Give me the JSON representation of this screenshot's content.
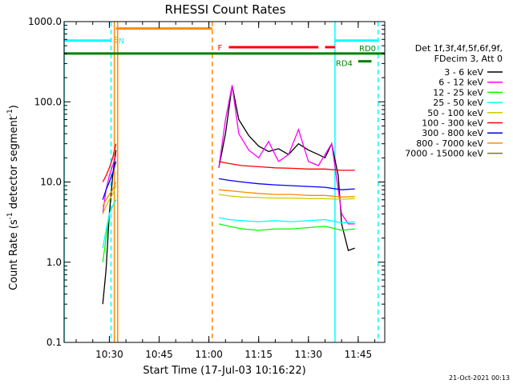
{
  "colors": {
    "background": "#ffffff",
    "axes": "#000000",
    "cyan": "#00ffff",
    "orange": "#ff8c00",
    "red": "#ff0000",
    "green": "#008000",
    "lime": "#00ff00",
    "magenta": "#ff00ff",
    "blue": "#0000ff",
    "yellow": "#cccc00",
    "olive": "#808000"
  },
  "chart_data": {
    "type": "line",
    "title": "RHESSI Count Rates",
    "xlabel": "Start Time (17-Jul-03 10:16:22)",
    "ylabel_parts": [
      "Count Rate (s",
      "-1",
      " detector segment",
      "-1",
      ")"
    ],
    "y_scale": "log",
    "ylim": [
      0.1,
      1000.0
    ],
    "xlim": [
      "10:16:22",
      "11:53:00"
    ],
    "x_ticks": [
      "10:30",
      "10:45",
      "11:00",
      "11:15",
      "11:30",
      "11:45"
    ],
    "y_ticks": [
      "0.1",
      "1.0",
      "10.0",
      "100.0",
      "1000.0"
    ],
    "grid": false,
    "legend_position": "right",
    "legend_header": [
      "Det 1f,3f,4f,5f,6f,9f,",
      "FDecim 3, Att 0"
    ],
    "series": [
      {
        "name": "3 - 6 keV",
        "color": "#000000",
        "segments": [
          {
            "x": [
              "10:28",
              "10:29",
              "10:30",
              "10:31",
              "10:32"
            ],
            "y": [
              0.3,
              0.8,
              4.0,
              12.0,
              25.0
            ]
          },
          {
            "x": [
              "11:03",
              "11:05",
              "11:07",
              "11:09",
              "11:12",
              "11:15",
              "11:18",
              "11:21",
              "11:24",
              "11:27",
              "11:30",
              "11:33",
              "11:35",
              "11:37",
              "11:39",
              "11:40",
              "11:42",
              "11:44"
            ],
            "y": [
              15.0,
              40.0,
              160.0,
              60.0,
              38.0,
              28.0,
              24.0,
              26.0,
              22.0,
              30.0,
              25.0,
              22.0,
              20.0,
              30.0,
              12.0,
              3.0,
              1.4,
              1.5
            ]
          }
        ]
      },
      {
        "name": "6 - 12 keV",
        "color": "#ff00ff",
        "segments": [
          {
            "x": [
              "10:28",
              "10:29",
              "10:30",
              "10:31",
              "10:32"
            ],
            "y": [
              4.0,
              8.0,
              12.0,
              16.0,
              22.0
            ]
          },
          {
            "x": [
              "11:03",
              "11:05",
              "11:07",
              "11:09",
              "11:12",
              "11:15",
              "11:18",
              "11:21",
              "11:24",
              "11:27",
              "11:30",
              "11:33",
              "11:35",
              "11:37",
              "11:39",
              "11:40",
              "11:42",
              "11:44"
            ],
            "y": [
              15.0,
              60.0,
              160.0,
              40.0,
              25.0,
              20.0,
              32.0,
              18.0,
              22.0,
              45.0,
              18.0,
              16.0,
              22.0,
              30.0,
              8.0,
              4.0,
              3.0,
              3.0
            ]
          }
        ]
      },
      {
        "name": "12 - 25 keV",
        "color": "#00ff00",
        "segments": [
          {
            "x": [
              "10:28",
              "10:29",
              "10:30",
              "10:31",
              "10:32"
            ],
            "y": [
              1.0,
              2.0,
              4.0,
              5.0,
              6.0
            ]
          },
          {
            "x": [
              "11:03",
              "11:06",
              "11:10",
              "11:15",
              "11:20",
              "11:25",
              "11:30",
              "11:35",
              "11:40",
              "11:44"
            ],
            "y": [
              3.0,
              2.8,
              2.6,
              2.5,
              2.6,
              2.6,
              2.7,
              2.8,
              2.5,
              2.6
            ]
          }
        ]
      },
      {
        "name": "25 - 50 keV",
        "color": "#00ffff",
        "segments": [
          {
            "x": [
              "10:28",
              "10:29",
              "10:30",
              "10:31",
              "10:32"
            ],
            "y": [
              1.5,
              2.5,
              4.0,
              5.0,
              6.0
            ]
          },
          {
            "x": [
              "11:03",
              "11:06",
              "11:10",
              "11:15",
              "11:20",
              "11:25",
              "11:30",
              "11:35",
              "11:40",
              "11:44"
            ],
            "y": [
              3.6,
              3.4,
              3.3,
              3.2,
              3.3,
              3.2,
              3.3,
              3.4,
              3.1,
              3.2
            ]
          }
        ]
      },
      {
        "name": "50 - 100 keV",
        "color": "#cccc00",
        "segments": [
          {
            "x": [
              "10:28",
              "10:29",
              "10:30",
              "10:31",
              "10:32"
            ],
            "y": [
              4.0,
              5.0,
              6.0,
              7.0,
              9.0
            ]
          },
          {
            "x": [
              "11:03",
              "11:06",
              "11:10",
              "11:15",
              "11:20",
              "11:25",
              "11:30",
              "11:35",
              "11:40",
              "11:44"
            ],
            "y": [
              7.0,
              6.7,
              6.5,
              6.4,
              6.3,
              6.3,
              6.2,
              6.2,
              6.1,
              6.2
            ]
          }
        ]
      },
      {
        "name": "100 - 300 keV",
        "color": "#ff0000",
        "segments": [
          {
            "x": [
              "10:28",
              "10:29",
              "10:30",
              "10:31",
              "10:32"
            ],
            "y": [
              10.0,
              12.0,
              15.0,
              20.0,
              30.0
            ]
          },
          {
            "x": [
              "11:03",
              "11:06",
              "11:10",
              "11:15",
              "11:20",
              "11:25",
              "11:30",
              "11:35",
              "11:40",
              "11:44"
            ],
            "y": [
              18.0,
              17.0,
              16.0,
              15.5,
              15.0,
              14.8,
              14.5,
              14.5,
              14.0,
              14.0
            ]
          }
        ]
      },
      {
        "name": "300 - 800 keV",
        "color": "#0000ff",
        "segments": [
          {
            "x": [
              "10:28",
              "10:29",
              "10:30",
              "10:31",
              "10:32"
            ],
            "y": [
              6.0,
              8.0,
              10.0,
              13.0,
              18.0
            ]
          },
          {
            "x": [
              "11:03",
              "11:06",
              "11:10",
              "11:15",
              "11:20",
              "11:25",
              "11:30",
              "11:35",
              "11:40",
              "11:44"
            ],
            "y": [
              11.0,
              10.5,
              10.0,
              9.5,
              9.2,
              9.0,
              8.8,
              8.6,
              8.0,
              8.2
            ]
          }
        ]
      },
      {
        "name": "800 - 7000 keV",
        "color": "#ff8c00",
        "segments": [
          {
            "x": [
              "10:28",
              "10:29",
              "10:30",
              "10:31",
              "10:32"
            ],
            "y": [
              5.0,
              6.0,
              7.0,
              8.0,
              10.0
            ]
          },
          {
            "x": [
              "11:03",
              "11:06",
              "11:10",
              "11:15",
              "11:20",
              "11:25",
              "11:30",
              "11:35",
              "11:40",
              "11:44"
            ],
            "y": [
              8.0,
              7.8,
              7.5,
              7.2,
              7.0,
              7.0,
              6.8,
              6.8,
              6.5,
              6.6
            ]
          }
        ]
      },
      {
        "name": "7000 - 15000 keV",
        "color": "#808000",
        "segments": []
      }
    ],
    "bands": [
      {
        "label": "",
        "color": "#00ffff",
        "x": [
          "10:16:22",
          "10:30:30"
        ],
        "y": 580
      },
      {
        "label": "S",
        "color": "#ff8c00",
        "x": [
          "10:30:30"
        ],
        "y": 600
      },
      {
        "label": "N",
        "color": "#00ffff",
        "x": [
          "10:32:00"
        ],
        "y": 580
      },
      {
        "label": "",
        "color": "#ff8c00",
        "x": [
          "10:32:00",
          "11:01:00"
        ],
        "y": 820
      },
      {
        "label": "F",
        "color": "#ff0000",
        "x": [
          "11:06:00",
          "11:33:00"
        ],
        "y": 480
      },
      {
        "label": "",
        "color": "#ff0000",
        "x": [
          "11:35:00",
          "11:38:00"
        ],
        "y": 480
      },
      {
        "label": "",
        "color": "#00ffff",
        "x": [
          "11:38:00",
          "11:51:00"
        ],
        "y": 580
      },
      {
        "label": "RD0",
        "color": "#008000",
        "x": [
          "10:16:22",
          "11:53:00"
        ],
        "y": 400
      },
      {
        "label": "RD4",
        "color": "#008000",
        "x": [
          "11:45:00",
          "11:49:00"
        ],
        "y": 320
      }
    ],
    "vertical_lines": [
      {
        "x": "10:16:22",
        "color": "#00ffff",
        "style": "solid"
      },
      {
        "x": "10:30:30",
        "color": "#00ffff",
        "style": "dashed"
      },
      {
        "x": "10:31:30",
        "color": "#ff8c00",
        "style": "solid"
      },
      {
        "x": "10:32:30",
        "color": "#ff8c00",
        "style": "solid"
      },
      {
        "x": "11:01:00",
        "color": "#ff8c00",
        "style": "dashed"
      },
      {
        "x": "11:38:00",
        "color": "#00ffff",
        "style": "solid"
      },
      {
        "x": "11:51:00",
        "color": "#00ffff",
        "style": "dashed"
      }
    ]
  },
  "footer": {
    "timestamp": "21-Oct-2021 00:13"
  }
}
